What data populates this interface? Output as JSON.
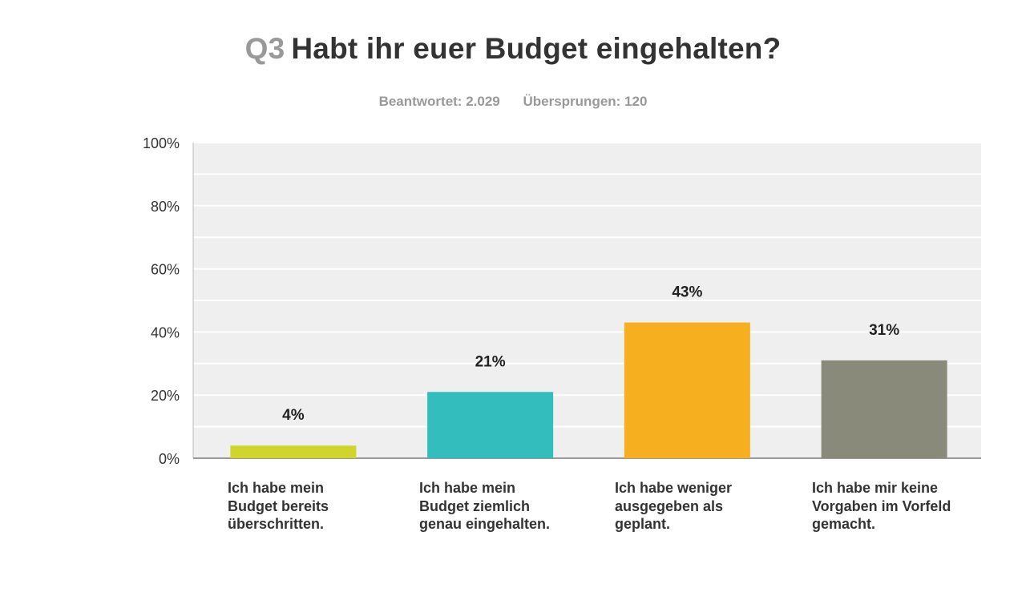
{
  "header": {
    "question_number": "Q3",
    "question_text": "Habt ihr euer Budget eingehalten?",
    "answered": "Beantwortet: 2.029",
    "skipped": "Übersprungen: 120"
  },
  "chart_data": {
    "type": "bar",
    "title": "Q3 Habt ihr euer Budget eingehalten?",
    "xlabel": "",
    "ylabel": "",
    "ylim": [
      0,
      100
    ],
    "yticks": [
      0,
      20,
      40,
      60,
      80,
      100
    ],
    "ytick_labels": [
      "0%",
      "20%",
      "40%",
      "60%",
      "80%",
      "100%"
    ],
    "grid": true,
    "categories": [
      "Ich habe mein Budget bereits überschritten.",
      "Ich habe mein Budget ziemlich genau eingehalten.",
      "Ich habe weniger ausgegeben als geplant.",
      "Ich habe mir keine Vorgaben im Vorfeld gemacht."
    ],
    "values": [
      4,
      21,
      43,
      31
    ],
    "value_labels": [
      "4%",
      "21%",
      "43%",
      "31%"
    ],
    "colors": [
      "#cfd52b",
      "#33bdbd",
      "#f6b01f",
      "#8a8a7a"
    ]
  }
}
